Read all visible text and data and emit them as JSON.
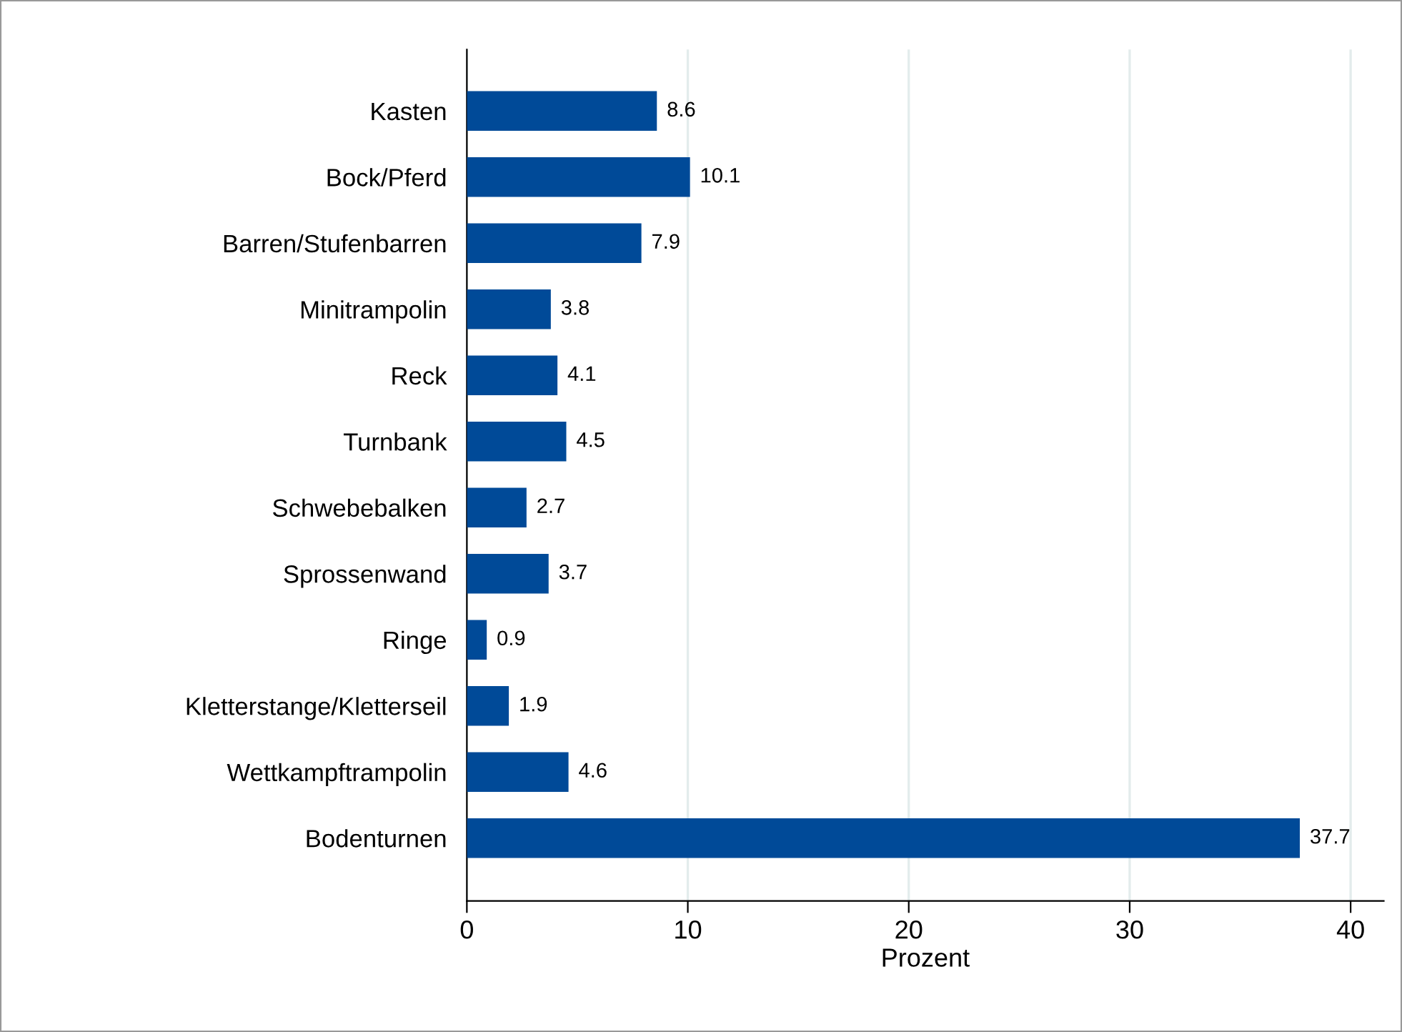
{
  "chart_data": {
    "type": "bar",
    "orientation": "horizontal",
    "xlabel": "Prozent",
    "categories": [
      "Kasten",
      "Bock/Pferd",
      "Barren/Stufenbarren",
      "Minitrampolin",
      "Reck",
      "Turnbank",
      "Schwebebalken",
      "Sprossenwand",
      "Ringe",
      "Kletterstange/Kletterseil",
      "Wettkampftrampolin",
      "Bodenturnen"
    ],
    "values": [
      8.6,
      10.1,
      7.9,
      3.8,
      4.1,
      4.5,
      2.7,
      3.7,
      0.9,
      1.9,
      4.6,
      37.7
    ],
    "color": "#004a98",
    "xlim": [
      0,
      41.5
    ],
    "xticks": [
      0,
      10,
      20,
      30,
      40
    ],
    "grid": "x",
    "data_labels": true
  }
}
